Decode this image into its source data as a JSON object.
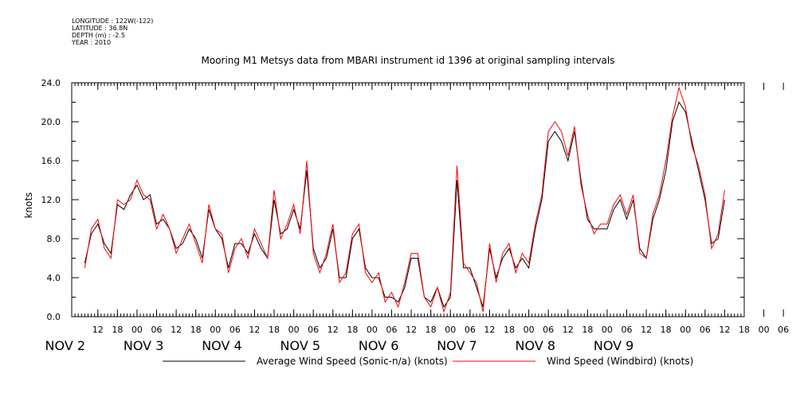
{
  "header": {
    "longitude": "LONGITUDE : 122W(-122)",
    "latitude": "LATITUDE : 36.8N",
    "depth": "DEPTH (m) : -2.5",
    "year": "YEAR : 2010"
  },
  "chart_data": {
    "type": "line",
    "title": "Mooring M1 Metsys data from MBARI instrument id 1396 at original sampling intervals",
    "ylabel": "knots",
    "xlabel": "",
    "ylim": [
      0,
      24
    ],
    "yticks": [
      "0.0",
      "4.0",
      "8.0",
      "12.0",
      "16.0",
      "20.0",
      "24.0"
    ],
    "x_hour_ticks": [
      "12",
      "18",
      "00",
      "06",
      "12",
      "18",
      "00",
      "06",
      "12",
      "18",
      "00",
      "06",
      "12",
      "18",
      "00",
      "06",
      "12",
      "18",
      "00",
      "06",
      "12",
      "18",
      "00",
      "06",
      "12",
      "18",
      "00",
      "06",
      "12",
      "18",
      "00",
      "06",
      "12",
      "18",
      "00",
      "06"
    ],
    "day_labels": [
      "NOV 2",
      "NOV 3",
      "NOV 4",
      "NOV 5",
      "NOV 6",
      "NOV 7",
      "NOV 8",
      "NOV 9"
    ],
    "grid": false,
    "legend": "bottom",
    "colors": {
      "average": "#000000",
      "windbird": "#ff0000"
    },
    "series": [
      {
        "name": "Average Wind Speed (Sonic-n/a) (knots)",
        "color": "#000000",
        "x_hours": [
          8,
          10,
          12,
          14,
          16,
          18,
          20,
          22,
          24,
          26,
          28,
          30,
          32,
          34,
          36,
          38,
          40,
          42,
          44,
          46,
          48,
          50,
          52,
          54,
          56,
          58,
          60,
          62,
          64,
          66,
          68,
          70,
          72,
          74,
          76,
          78,
          80,
          82,
          84,
          86,
          88,
          90,
          92,
          94,
          96,
          98,
          100,
          102,
          104,
          106,
          108,
          110,
          112,
          114,
          116,
          118,
          120,
          122,
          124,
          126,
          128,
          130,
          132,
          134,
          136,
          138,
          140,
          142,
          144,
          146,
          148,
          150,
          152,
          154,
          156,
          158,
          160,
          162,
          164,
          166,
          168,
          170,
          172,
          174,
          176,
          178,
          180,
          182,
          184,
          186,
          188,
          190,
          192,
          194,
          196,
          198,
          200,
          202,
          204,
          206,
          208
        ],
        "values": [
          5.5,
          8.5,
          9.5,
          7.5,
          6.5,
          11.5,
          11,
          12.5,
          13.5,
          12,
          12.5,
          9.5,
          10,
          9,
          7,
          7.5,
          9,
          8,
          6,
          11,
          9,
          8,
          5,
          7.5,
          7.5,
          6.5,
          8.5,
          7,
          6,
          12,
          8.5,
          9,
          11,
          9,
          15,
          7,
          5,
          6,
          9,
          4,
          4,
          8,
          9,
          5,
          4,
          4,
          2,
          2,
          1.5,
          3,
          6,
          6,
          2,
          1.5,
          3,
          1,
          2,
          14,
          5,
          5,
          3,
          1,
          7,
          4,
          6,
          7,
          5,
          6,
          5,
          9,
          12,
          18,
          19,
          18,
          16,
          19,
          14,
          10,
          9,
          9,
          9,
          11,
          12,
          10,
          12,
          7,
          6,
          10,
          12,
          15,
          20,
          22,
          21,
          18,
          15,
          12,
          7.5,
          8,
          12,
          null,
          null
        ],
        "values_note": ""
      },
      {
        "name": "Wind Speed (Windbird) (knots)",
        "color": "#ff0000",
        "x_hours": [
          8,
          10,
          12,
          14,
          16,
          18,
          20,
          22,
          24,
          26,
          28,
          30,
          32,
          34,
          36,
          38,
          40,
          42,
          44,
          46,
          48,
          50,
          52,
          54,
          56,
          58,
          60,
          62,
          64,
          66,
          68,
          70,
          72,
          74,
          76,
          78,
          80,
          82,
          84,
          86,
          88,
          90,
          92,
          94,
          96,
          98,
          100,
          102,
          104,
          106,
          108,
          110,
          112,
          114,
          116,
          118,
          120,
          122,
          124,
          126,
          128,
          130,
          132,
          134,
          136,
          138,
          140,
          142,
          144,
          146,
          148,
          150,
          152,
          154,
          156,
          158,
          160,
          162,
          164,
          166,
          168,
          170,
          172,
          174,
          176,
          178,
          180,
          182,
          184,
          186,
          188,
          190,
          192,
          194,
          196,
          198,
          200,
          202,
          204,
          206,
          208
        ],
        "values": [
          5,
          9,
          10,
          7,
          6,
          12,
          11.5,
          12,
          14,
          12.5,
          12,
          9,
          10.5,
          9,
          6.5,
          8,
          9.5,
          7.5,
          5.5,
          11.5,
          9,
          8.5,
          4.5,
          7,
          8,
          6,
          9,
          7.5,
          6,
          13,
          8,
          9.5,
          11.5,
          8.5,
          16,
          6.5,
          4.5,
          6.5,
          9.5,
          3.5,
          4.5,
          8.5,
          9.5,
          4.5,
          3.5,
          4.5,
          1.5,
          2.5,
          1,
          3.5,
          6.5,
          6.5,
          2,
          1,
          3,
          0.5,
          2.5,
          15.5,
          5.5,
          4.5,
          3.5,
          0.5,
          7.5,
          3.5,
          6.5,
          7.5,
          4.5,
          6.5,
          5.5,
          9.5,
          12.5,
          19,
          20,
          19,
          16.5,
          19.5,
          13.5,
          10.5,
          8.5,
          9.5,
          9.5,
          11.5,
          12.5,
          10.5,
          12.5,
          6.5,
          6,
          10.5,
          12.5,
          16,
          20.5,
          23.5,
          21.5,
          17.5,
          15.5,
          12.5,
          7,
          8.5,
          13,
          null,
          null
        ]
      }
    ]
  }
}
